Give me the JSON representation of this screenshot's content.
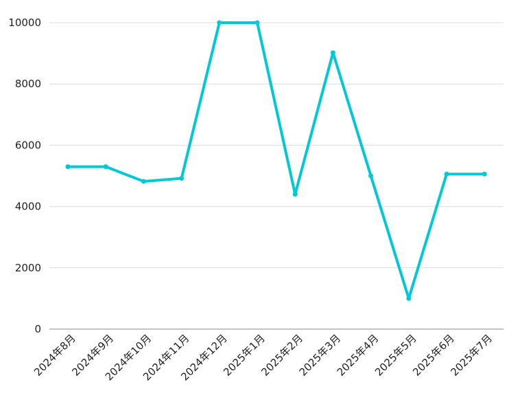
{
  "chart_data": {
    "type": "line",
    "title": "",
    "xlabel": "",
    "ylabel": "",
    "ylim": [
      0,
      10000
    ],
    "yticks": [
      "0",
      "2000",
      "4000",
      "6000",
      "8000",
      "10000"
    ],
    "grid": "horizontal",
    "categories": [
      "2024年8月",
      "2024年9月",
      "2024年10月",
      "2024年11月",
      "2024年12月",
      "2025年1月",
      "2025年2月",
      "2025年3月",
      "2025年4月",
      "2025年5月",
      "2025年6月",
      "2025年7月"
    ],
    "series": [
      {
        "color": "#00c8d7",
        "values": [
          5300,
          5300,
          4820,
          4920,
          10000,
          10000,
          4400,
          9020,
          5000,
          1000,
          5060,
          5060
        ]
      }
    ]
  }
}
